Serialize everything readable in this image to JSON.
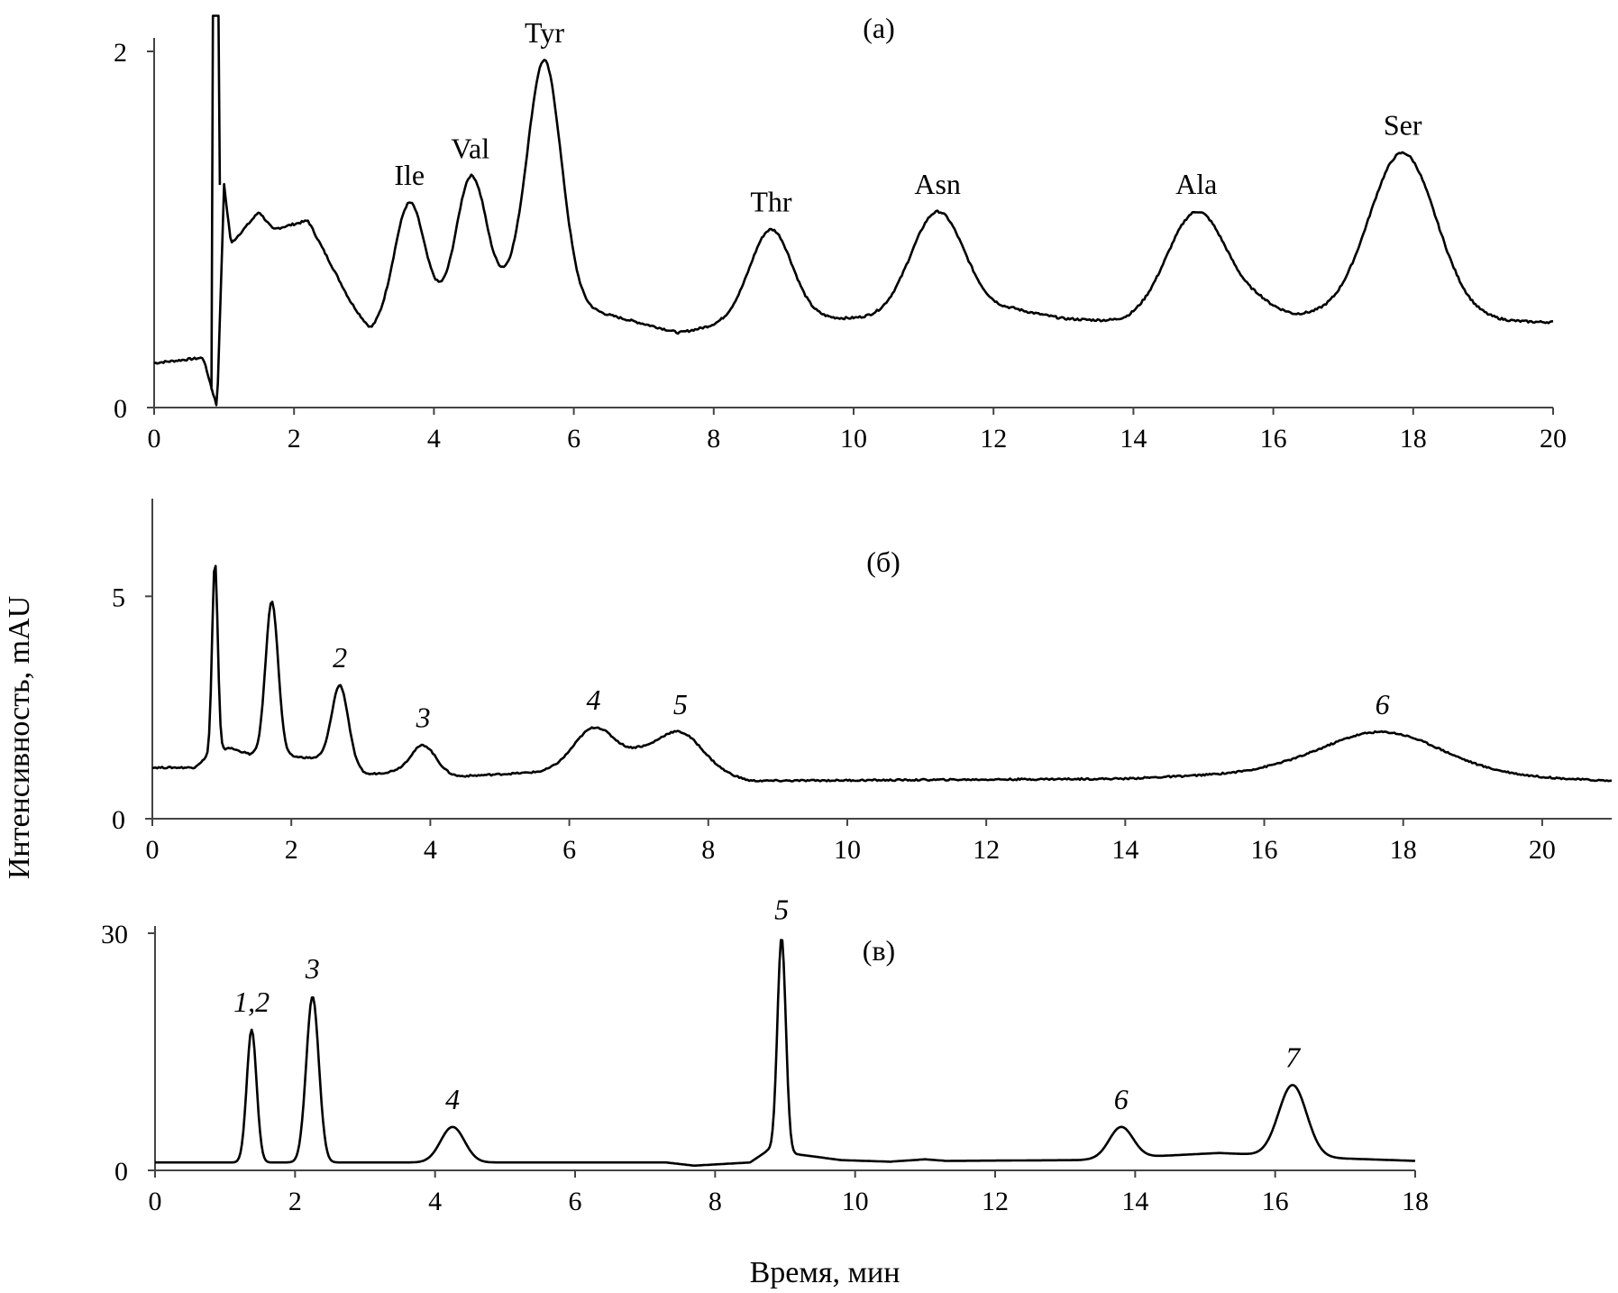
{
  "figure": {
    "ylabel": "Интенсивность, mAU",
    "xlabel": "Время, мин"
  },
  "chart_data": [
    {
      "type": "line",
      "panel_label": "(а)",
      "xlim": [
        0,
        20
      ],
      "ylim": [
        0,
        2
      ],
      "x_ticks": [
        0,
        2,
        4,
        6,
        8,
        10,
        12,
        14,
        16,
        18,
        20
      ],
      "y_ticks": [
        0,
        2
      ],
      "baseline": [
        [
          0.0,
          0.25
        ],
        [
          0.7,
          0.28
        ],
        [
          0.9,
          0.0
        ],
        [
          1.0,
          1.25
        ],
        [
          1.1,
          0.92
        ],
        [
          1.5,
          1.1
        ],
        [
          1.7,
          1.0
        ],
        [
          2.2,
          1.05
        ],
        [
          2.8,
          0.6
        ],
        [
          3.1,
          0.42
        ],
        [
          3.9,
          0.5
        ],
        [
          4.7,
          0.72
        ],
        [
          6.2,
          0.55
        ],
        [
          7.5,
          0.42
        ],
        [
          8.3,
          0.48
        ],
        [
          9.6,
          0.5
        ],
        [
          10.4,
          0.5
        ],
        [
          12.3,
          0.55
        ],
        [
          13.0,
          0.5
        ],
        [
          13.9,
          0.48
        ],
        [
          15.8,
          0.58
        ],
        [
          16.3,
          0.52
        ],
        [
          19.8,
          0.48
        ],
        [
          20.0,
          0.48
        ]
      ],
      "peaks": [
        {
          "label": "Ile",
          "x": 3.65,
          "y": 1.15
        },
        {
          "label": "Val",
          "x": 4.52,
          "y": 1.3
        },
        {
          "label": "Tyr",
          "x": 5.58,
          "y": 1.95
        },
        {
          "label": "Thr",
          "x": 8.82,
          "y": 1.0
        },
        {
          "label": "Asn",
          "x": 11.2,
          "y": 1.1
        },
        {
          "label": "Ala",
          "x": 14.9,
          "y": 1.1
        },
        {
          "label": "Ser",
          "x": 17.85,
          "y": 1.43
        }
      ]
    },
    {
      "type": "line",
      "panel_label": "(б)",
      "xlim": [
        0,
        21
      ],
      "ylim": [
        0,
        6
      ],
      "x_ticks": [
        0,
        2,
        4,
        6,
        8,
        10,
        12,
        14,
        16,
        18,
        20
      ],
      "y_ticks": [
        0,
        5
      ],
      "baseline": [
        [
          0.0,
          1.15
        ],
        [
          0.6,
          1.15
        ],
        [
          0.8,
          1.4
        ],
        [
          1.1,
          1.6
        ],
        [
          1.4,
          1.45
        ],
        [
          2.0,
          1.4
        ],
        [
          2.4,
          1.35
        ],
        [
          3.1,
          1.0
        ],
        [
          3.5,
          1.05
        ],
        [
          4.4,
          0.95
        ],
        [
          5.6,
          1.05
        ],
        [
          7.0,
          1.45
        ],
        [
          8.6,
          0.85
        ],
        [
          14.0,
          0.9
        ],
        [
          15.5,
          1.0
        ],
        [
          16.2,
          1.05
        ],
        [
          19.5,
          0.95
        ],
        [
          21.0,
          0.85
        ]
      ],
      "peaks": [
        {
          "label": "",
          "x": 0.9,
          "y": 5.8
        },
        {
          "label": "",
          "x": 1.72,
          "y": 4.9
        },
        {
          "label": "2",
          "x": 2.7,
          "y": 3.0
        },
        {
          "label": "3",
          "x": 3.9,
          "y": 1.65
        },
        {
          "label": "4",
          "x": 6.35,
          "y": 2.05
        },
        {
          "label": "5",
          "x": 7.6,
          "y": 1.95
        },
        {
          "label": "6",
          "x": 17.7,
          "y": 1.95
        }
      ]
    },
    {
      "type": "line",
      "panel_label": "(в)",
      "xlim": [
        0,
        18
      ],
      "ylim": [
        0,
        30
      ],
      "x_ticks": [
        0,
        2,
        4,
        6,
        8,
        10,
        12,
        14,
        16,
        18
      ],
      "y_ticks": [
        0,
        30
      ],
      "baseline": [
        [
          0.0,
          1.0
        ],
        [
          1.0,
          1.0
        ],
        [
          3.5,
          1.0
        ],
        [
          7.3,
          1.0
        ],
        [
          7.7,
          0.6
        ],
        [
          8.5,
          1.0
        ],
        [
          8.75,
          2.5
        ],
        [
          9.2,
          2.0
        ],
        [
          9.8,
          1.3
        ],
        [
          10.5,
          1.1
        ],
        [
          11.0,
          1.4
        ],
        [
          11.3,
          1.2
        ],
        [
          13.2,
          1.3
        ],
        [
          14.3,
          1.8
        ],
        [
          15.2,
          2.2
        ],
        [
          17.0,
          1.5
        ],
        [
          18.0,
          1.2
        ]
      ],
      "peaks": [
        {
          "label": "1,2",
          "x": 1.38,
          "y": 17.8
        },
        {
          "label": "3",
          "x": 2.25,
          "y": 22.0
        },
        {
          "label": "4",
          "x": 4.25,
          "y": 5.5
        },
        {
          "label": "5",
          "x": 8.95,
          "y": 29.5
        },
        {
          "label": "6",
          "x": 13.8,
          "y": 5.5
        },
        {
          "label": "7",
          "x": 16.25,
          "y": 10.8
        }
      ]
    }
  ]
}
